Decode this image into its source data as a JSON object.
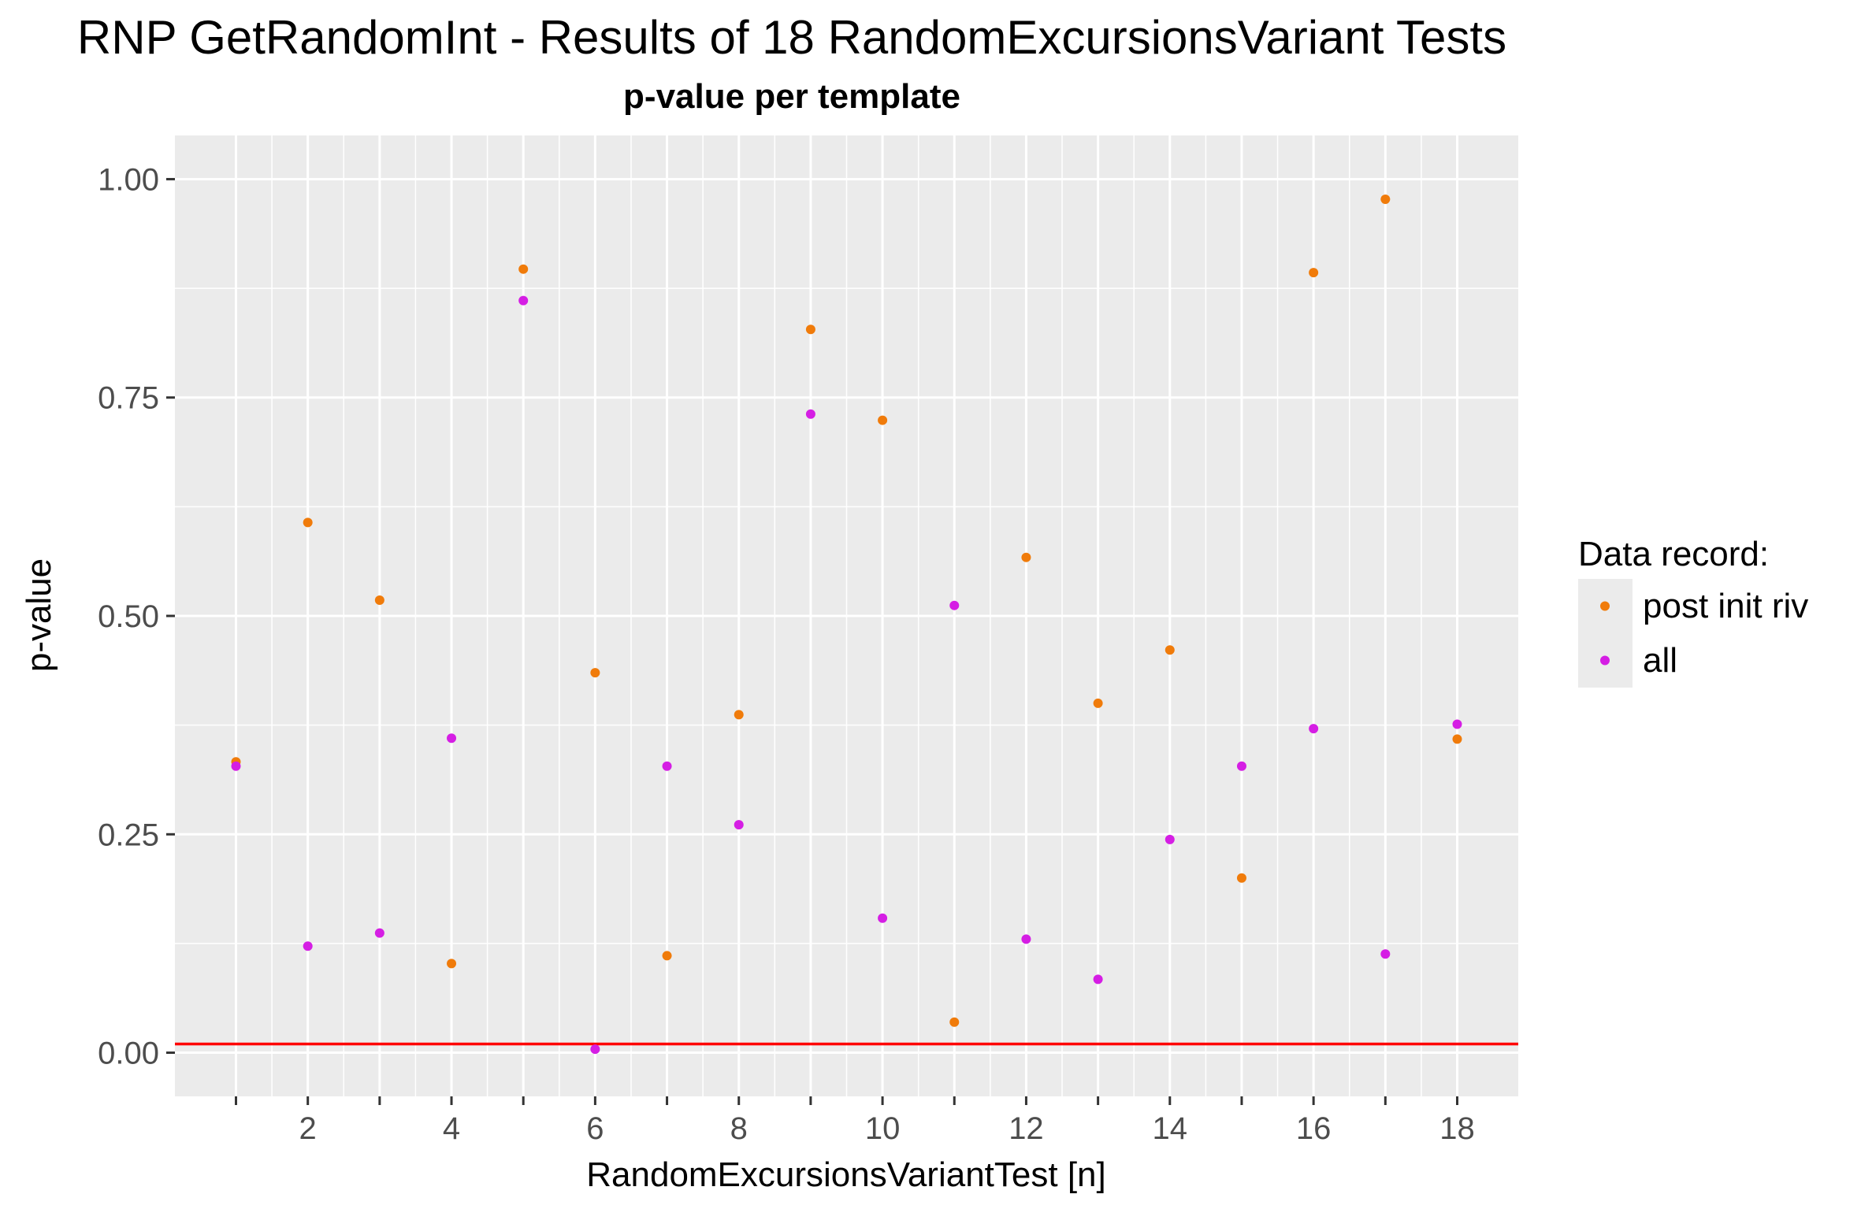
{
  "chart_data": {
    "type": "scatter",
    "title": "RNP GetRandomInt - Results of 18 RandomExcursionsVariant Tests",
    "subtitle": "p-value per template",
    "xlabel": "RandomExcursionsVariantTest [n]",
    "ylabel": "p-value",
    "x": [
      1,
      2,
      3,
      4,
      5,
      6,
      7,
      8,
      9,
      10,
      11,
      12,
      13,
      14,
      15,
      16,
      17,
      18
    ],
    "xlim": [
      0.15,
      18.85
    ],
    "ylim": [
      -0.05,
      1.05
    ],
    "x_ticks": [
      1,
      2,
      3,
      4,
      5,
      6,
      7,
      8,
      9,
      10,
      11,
      12,
      13,
      14,
      15,
      16,
      17,
      18
    ],
    "x_tick_labels": [
      "",
      "2",
      "",
      "4",
      "",
      "6",
      "",
      "8",
      "",
      "10",
      "",
      "12",
      "",
      "14",
      "",
      "16",
      "",
      "18"
    ],
    "y_ticks": [
      0.0,
      0.25,
      0.5,
      0.75,
      1.0
    ],
    "y_tick_labels": [
      "0.00",
      "0.25",
      "0.50",
      "0.75",
      "1.00"
    ],
    "grid": true,
    "reference_line": {
      "y": 0.01,
      "color": "#ff0000"
    },
    "legend": {
      "title": "Data record:",
      "position": "right",
      "entries": [
        "post init riv",
        "all"
      ]
    },
    "series": [
      {
        "name": "post init riv",
        "color": "#f07b0a",
        "values": [
          0.333,
          0.607,
          0.518,
          0.102,
          0.897,
          0.435,
          0.111,
          0.387,
          0.828,
          0.724,
          0.035,
          0.567,
          0.4,
          0.461,
          0.2,
          0.893,
          0.977,
          0.359
        ]
      },
      {
        "name": "all",
        "color": "#d51ee4",
        "values": [
          0.328,
          0.122,
          0.137,
          0.36,
          0.861,
          0.004,
          0.328,
          0.261,
          0.731,
          0.154,
          0.512,
          0.13,
          0.084,
          0.244,
          0.328,
          0.371,
          0.113,
          0.376
        ]
      }
    ]
  }
}
